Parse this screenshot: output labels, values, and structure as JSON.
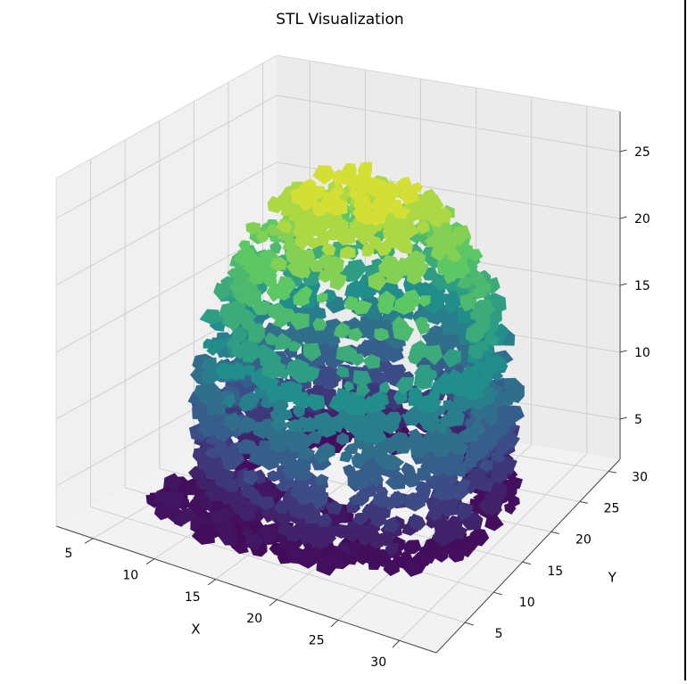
{
  "chart_data": {
    "type": "surface3d",
    "title": "STL Visualization",
    "xlabel": "X",
    "ylabel": "Y",
    "zlabel": "",
    "xlim": [
      2,
      33
    ],
    "ylim": [
      0,
      32
    ],
    "zlim": [
      2,
      28
    ],
    "x_ticks": [
      "5",
      "10",
      "15",
      "20",
      "25",
      "30"
    ],
    "x_tick_values": [
      5,
      10,
      15,
      20,
      25,
      30
    ],
    "y_ticks": [
      "5",
      "10",
      "15",
      "20",
      "25",
      "30"
    ],
    "y_tick_values": [
      5,
      10,
      15,
      20,
      25,
      30
    ],
    "z_ticks": [
      "5",
      "10",
      "15",
      "20",
      "25"
    ],
    "z_tick_values": [
      5,
      10,
      15,
      20,
      25
    ],
    "grid": true,
    "colormap": "viridis",
    "colormap_colors": [
      "#440154",
      "#3b528b",
      "#21918c",
      "#5ec962",
      "#fde725"
    ],
    "shape": "perforated dome-shaped lattice mesh, color by height"
  }
}
